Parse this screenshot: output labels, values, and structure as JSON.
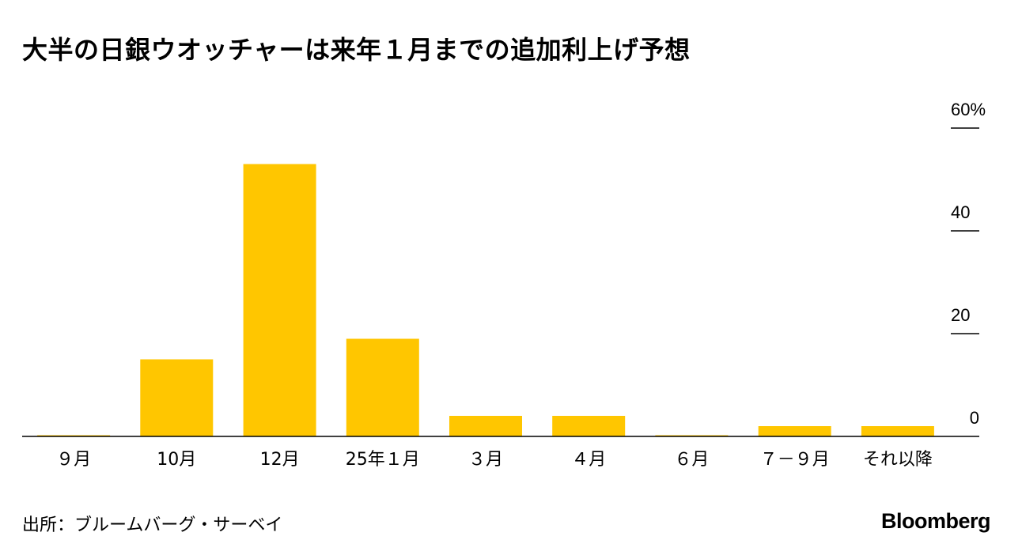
{
  "title": "大半の日銀ウオッチャーは来年１月までの追加利上げ予想",
  "source": "出所：ブルームバーグ・サーベイ",
  "brand": "Bloomberg",
  "colors": {
    "bar": "#FFC600",
    "axis": "#000000",
    "text": "#000000"
  },
  "chart_data": {
    "type": "bar",
    "categories": [
      "９月",
      "10月",
      "12月",
      "25年１月",
      "３月",
      "４月",
      "６月",
      "７－９月",
      "それ以降"
    ],
    "values": [
      0.2,
      15,
      53,
      19,
      4,
      4,
      0.2,
      2,
      2
    ],
    "y_ticks": [
      {
        "value": 0,
        "label": "0"
      },
      {
        "value": 20,
        "label": "20"
      },
      {
        "value": 40,
        "label": "40"
      },
      {
        "value": 60,
        "label": "60%"
      }
    ],
    "ylim": [
      0,
      60
    ],
    "ylabel": "",
    "xlabel": "",
    "y_axis_side": "right",
    "grid": false,
    "legend": "none"
  }
}
